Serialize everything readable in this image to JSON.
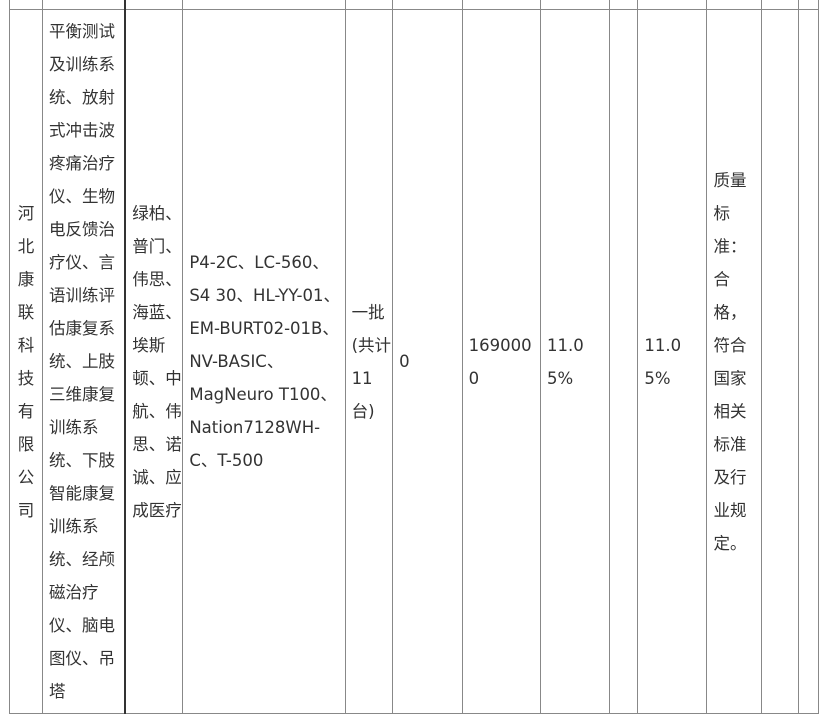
{
  "row": {
    "supplier": "河北康联科技有限公司",
    "products": "平衡测试及训练系统、放射式冲击波疼痛治疗仪、生物电反馈治疗仪、言语训练评估康复系统、上肢三维康复训练系统、下肢智能康复训练系统、经颅磁治疗仪、脑电图仪、吊塔",
    "brands": "绿柏、普门、伟思、海蓝、埃斯顿、中航、伟思、诺诚、应成医疗",
    "models": "P4-2C、LC-560、S4 30、HL-YY-01、EM-BURT02-01B、NV-BASIC、MagNeuro T100、Nation7128WH-C、T-500",
    "quantity": "一批(共计11台)",
    "value_a": "0",
    "amount": "1690000",
    "rate_a": "11.05%",
    "value_b": "",
    "rate_b": "11.05%",
    "quality": "质量标准：合格，符合国家相关标准及行业规定。",
    "value_c": ""
  }
}
